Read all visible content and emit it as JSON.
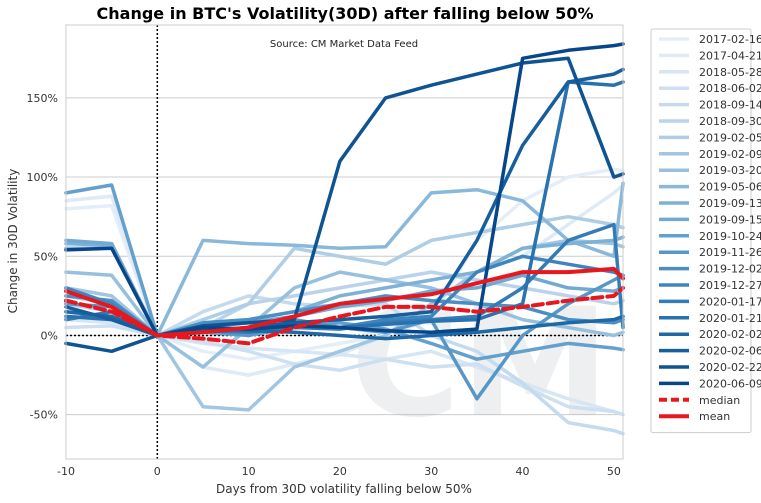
{
  "chart_data": {
    "type": "line",
    "title": "Change in BTC's Volatility(30D) after falling below 50%",
    "source": "Source: CM Market Data Feed",
    "xlabel": "Days from 30D volatility falling below 50%",
    "ylabel": "Change in 30D Volatility",
    "xlim": [
      -10,
      51
    ],
    "ylim": [
      -78,
      196
    ],
    "xticks": [
      -10,
      0,
      10,
      20,
      30,
      40,
      50
    ],
    "yticks": [
      -50,
      0,
      50,
      100,
      150
    ],
    "ytick_labels": [
      "-50%",
      "0%",
      "50%",
      "100%",
      "150%"
    ],
    "grid": "horizontal",
    "legend_position": "outside-right",
    "watermark": "CM",
    "reference_lines": {
      "x": 0,
      "y": 0
    },
    "series": [
      {
        "name": "2017-02-16",
        "color": "#e4eef9",
        "x": [
          -10,
          -5,
          0,
          5,
          10,
          15,
          20,
          25,
          30,
          35,
          40,
          45,
          50,
          51
        ],
        "y": [
          80,
          82,
          0,
          -10,
          -15,
          -10,
          -5,
          0,
          10,
          60,
          85,
          100,
          105,
          104
        ]
      },
      {
        "name": "2017-04-21",
        "color": "#deebf7",
        "x": [
          -10,
          -5,
          0,
          5,
          10,
          15,
          20,
          25,
          30,
          35,
          40,
          45,
          50,
          51
        ],
        "y": [
          85,
          88,
          0,
          -20,
          -25,
          -18,
          -12,
          0,
          20,
          40,
          50,
          70,
          90,
          95
        ]
      },
      {
        "name": "2018-05-28",
        "color": "#d6e6f4",
        "x": [
          -10,
          -5,
          0,
          5,
          10,
          15,
          20,
          25,
          30,
          35,
          40,
          45,
          50,
          51
        ],
        "y": [
          10,
          8,
          0,
          -5,
          -8,
          -10,
          -12,
          -15,
          -10,
          -20,
          -30,
          -40,
          -48,
          -50
        ]
      },
      {
        "name": "2018-06-02",
        "color": "#cddff0",
        "x": [
          -10,
          -5,
          0,
          5,
          10,
          15,
          20,
          25,
          30,
          35,
          40,
          45,
          50,
          51
        ],
        "y": [
          5,
          6,
          0,
          -4,
          -10,
          -18,
          -22,
          -15,
          -20,
          -18,
          -32,
          -45,
          -48,
          -50
        ]
      },
      {
        "name": "2018-09-14",
        "color": "#c4daee",
        "x": [
          -10,
          -5,
          0,
          5,
          10,
          15,
          20,
          25,
          30,
          35,
          40,
          45,
          50,
          51
        ],
        "y": [
          15,
          10,
          0,
          15,
          25,
          20,
          18,
          20,
          0,
          -10,
          -30,
          -55,
          -60,
          -62
        ]
      },
      {
        "name": "2018-09-30",
        "color": "#bad3eb",
        "x": [
          -10,
          -5,
          0,
          5,
          10,
          15,
          20,
          25,
          30,
          35,
          40,
          45,
          50,
          51
        ],
        "y": [
          20,
          15,
          0,
          5,
          20,
          25,
          30,
          35,
          40,
          35,
          30,
          25,
          20,
          22
        ]
      },
      {
        "name": "2019-02-05",
        "color": "#aecde6",
        "x": [
          -10,
          -5,
          0,
          5,
          10,
          15,
          20,
          25,
          30,
          35,
          40,
          45,
          50,
          51
        ],
        "y": [
          25,
          20,
          0,
          10,
          20,
          55,
          50,
          45,
          60,
          65,
          70,
          75,
          70,
          68
        ]
      },
      {
        "name": "2019-02-09",
        "color": "#a2c6e2",
        "x": [
          -10,
          -5,
          0,
          5,
          10,
          15,
          20,
          25,
          30,
          35,
          40,
          45,
          50,
          51
        ],
        "y": [
          30,
          25,
          0,
          -45,
          -47,
          -20,
          -10,
          0,
          20,
          40,
          55,
          60,
          58,
          56
        ]
      },
      {
        "name": "2019-03-20",
        "color": "#97c0de",
        "x": [
          -10,
          -5,
          0,
          5,
          10,
          15,
          20,
          25,
          30,
          35,
          40,
          45,
          50,
          51
        ],
        "y": [
          40,
          38,
          0,
          -20,
          5,
          30,
          40,
          35,
          30,
          20,
          10,
          5,
          0,
          2
        ]
      },
      {
        "name": "2019-05-06",
        "color": "#8ab8db",
        "x": [
          -10,
          -5,
          0,
          5,
          10,
          15,
          20,
          25,
          30,
          35,
          40,
          45,
          50,
          51
        ],
        "y": [
          55,
          55,
          0,
          60,
          58,
          57,
          55,
          56,
          90,
          92,
          85,
          60,
          50,
          96
        ]
      },
      {
        "name": "2019-09-13",
        "color": "#7eb1d6",
        "x": [
          -10,
          -5,
          0,
          5,
          10,
          15,
          20,
          25,
          30,
          35,
          40,
          45,
          50,
          51
        ],
        "y": [
          58,
          57,
          0,
          5,
          10,
          15,
          25,
          30,
          35,
          40,
          55,
          58,
          60,
          62
        ]
      },
      {
        "name": "2019-09-15",
        "color": "#71a9d2",
        "x": [
          -10,
          -5,
          0,
          5,
          10,
          15,
          20,
          25,
          30,
          35,
          40,
          45,
          50,
          51
        ],
        "y": [
          60,
          58,
          0,
          5,
          8,
          12,
          18,
          22,
          28,
          30,
          38,
          30,
          28,
          30
        ]
      },
      {
        "name": "2019-10-24",
        "color": "#64a0cd",
        "x": [
          -10,
          -5,
          0,
          5,
          10,
          15,
          20,
          25,
          30,
          35,
          40,
          45,
          50,
          51
        ],
        "y": [
          90,
          95,
          0,
          2,
          0,
          5,
          8,
          4,
          -5,
          -15,
          -10,
          -5,
          -8,
          -9
        ]
      },
      {
        "name": "2019-11-26",
        "color": "#5797c8",
        "x": [
          -10,
          -5,
          0,
          5,
          10,
          15,
          20,
          25,
          30,
          35,
          40,
          45,
          50,
          51
        ],
        "y": [
          20,
          18,
          0,
          4,
          0,
          10,
          5,
          2,
          10,
          -40,
          0,
          20,
          35,
          38
        ]
      },
      {
        "name": "2019-12-02",
        "color": "#4b8ec3",
        "x": [
          -10,
          -5,
          0,
          5,
          10,
          15,
          20,
          25,
          30,
          35,
          40,
          45,
          50,
          51
        ],
        "y": [
          25,
          22,
          0,
          8,
          10,
          15,
          20,
          25,
          22,
          20,
          18,
          10,
          8,
          10
        ]
      },
      {
        "name": "2019-12-27",
        "color": "#3f85bd",
        "x": [
          -10,
          -5,
          0,
          5,
          10,
          15,
          20,
          25,
          30,
          35,
          40,
          45,
          50,
          51
        ],
        "y": [
          30,
          20,
          0,
          5,
          3,
          8,
          5,
          10,
          12,
          40,
          50,
          45,
          40,
          38
        ]
      },
      {
        "name": "2020-01-17",
        "color": "#337cb6",
        "x": [
          -10,
          -5,
          0,
          5,
          10,
          15,
          20,
          25,
          30,
          35,
          40,
          45,
          50,
          51
        ],
        "y": [
          10,
          15,
          0,
          3,
          2,
          5,
          4,
          8,
          10,
          12,
          30,
          60,
          70,
          5
        ]
      },
      {
        "name": "2020-01-21",
        "color": "#2972ae",
        "x": [
          -10,
          -5,
          0,
          5,
          10,
          15,
          20,
          25,
          30,
          35,
          40,
          45,
          50,
          51
        ],
        "y": [
          12,
          10,
          0,
          2,
          4,
          6,
          5,
          7,
          9,
          10,
          20,
          160,
          158,
          160
        ]
      },
      {
        "name": "2020-02-02",
        "color": "#1f68a6",
        "x": [
          -10,
          -5,
          0,
          5,
          10,
          15,
          20,
          25,
          30,
          35,
          40,
          45,
          50,
          51
        ],
        "y": [
          15,
          12,
          0,
          5,
          3,
          2,
          0,
          -2,
          0,
          2,
          5,
          8,
          10,
          12
        ]
      },
      {
        "name": "2020-02-06",
        "color": "#165e9d",
        "x": [
          -10,
          -5,
          0,
          5,
          10,
          15,
          20,
          25,
          30,
          35,
          40,
          45,
          50,
          51
        ],
        "y": [
          18,
          10,
          0,
          3,
          5,
          8,
          10,
          12,
          15,
          60,
          120,
          160,
          165,
          168
        ]
      },
      {
        "name": "2020-02-22",
        "color": "#0e5493",
        "x": [
          -10,
          -5,
          0,
          5,
          10,
          15,
          20,
          25,
          30,
          35,
          40,
          45,
          50,
          51
        ],
        "y": [
          -5,
          -10,
          0,
          6,
          8,
          10,
          110,
          150,
          158,
          165,
          172,
          175,
          100,
          102
        ]
      },
      {
        "name": "2020-06-09",
        "color": "#08468a",
        "x": [
          -10,
          -5,
          0,
          5,
          10,
          15,
          20,
          25,
          30,
          35,
          40,
          45,
          50,
          51
        ],
        "y": [
          54,
          55,
          0,
          5,
          4,
          6,
          5,
          3,
          2,
          4,
          175,
          180,
          183,
          184
        ]
      },
      {
        "name": "median",
        "color": "#e8161d",
        "dashed": true,
        "x": [
          -10,
          -5,
          0,
          5,
          10,
          15,
          20,
          25,
          30,
          35,
          40,
          45,
          50,
          51
        ],
        "y": [
          22,
          15,
          0,
          -2,
          -5,
          5,
          12,
          18,
          18,
          15,
          18,
          22,
          25,
          30
        ]
      },
      {
        "name": "mean",
        "color": "#e8161d",
        "dashed": false,
        "x": [
          -10,
          -5,
          0,
          5,
          10,
          15,
          20,
          25,
          30,
          35,
          40,
          45,
          50,
          51
        ],
        "y": [
          28,
          18,
          0,
          2,
          5,
          12,
          20,
          23,
          26,
          33,
          40,
          40,
          42,
          36
        ]
      }
    ]
  }
}
